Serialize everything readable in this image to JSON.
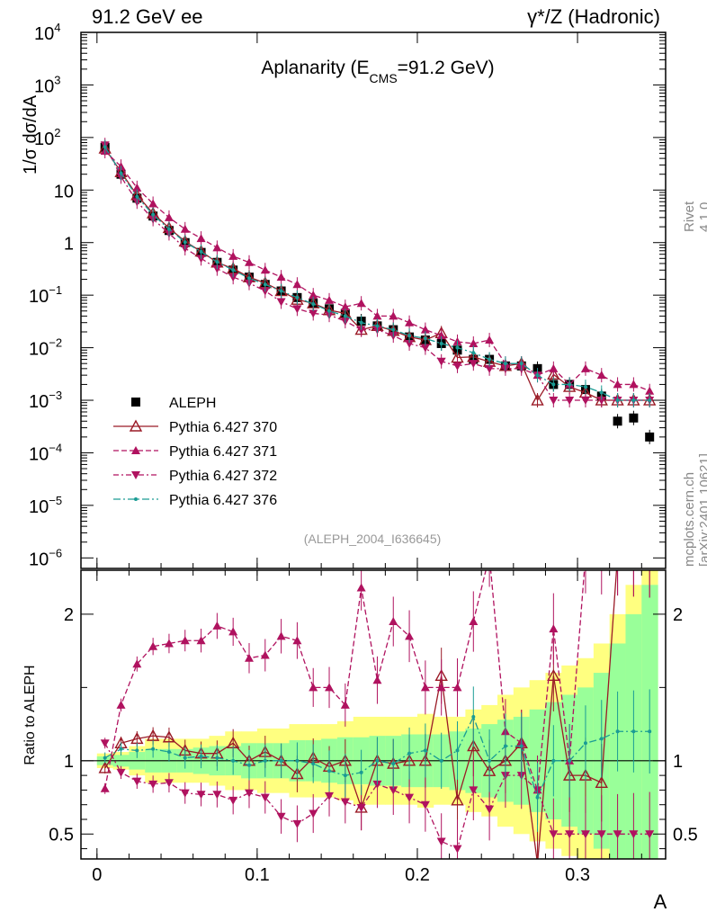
{
  "header": {
    "left": "91.2 GeV ee",
    "right": "γ*/Z (Hadronic)"
  },
  "side": {
    "rivet": "Rivet 4.1.0, ≥ 100k events",
    "mcplots": "mcplots.cern.ch [arXiv:2401.10621]"
  },
  "chart_data": {
    "type": "scatter",
    "title": "Aplanarity (E_CMS=91.2 GeV)",
    "title_parts": {
      "main": "Aplanarity (E",
      "sub": "CMS",
      "tail": "=91.2 GeV)"
    },
    "ylabel": "1/σ  dσ/dA",
    "xlabel": "A",
    "ratio_ylabel": "Ratio to ALEPH",
    "analysis_label": "(ALEPH_2004_I636645)",
    "xlim": [
      -0.01,
      0.355
    ],
    "ylim_log": [
      -6.2,
      4
    ],
    "ratio_ylim": [
      0.33,
      2.3
    ],
    "xticks": [
      {
        "v": 0,
        "label": "0"
      },
      {
        "v": 0.1,
        "label": "0.1"
      },
      {
        "v": 0.2,
        "label": "0.2"
      },
      {
        "v": 0.3,
        "label": "0.3"
      }
    ],
    "yticks": [
      {
        "exp": 4,
        "label": "10",
        "sup": "4"
      },
      {
        "exp": 3,
        "label": "10",
        "sup": "3"
      },
      {
        "exp": 2,
        "label": "10",
        "sup": "2"
      },
      {
        "exp": 1,
        "label": "10",
        "sup": ""
      },
      {
        "exp": 0,
        "label": "1",
        "sup": ""
      },
      {
        "exp": -1,
        "label": "10",
        "sup": "−1"
      },
      {
        "exp": -2,
        "label": "10",
        "sup": "−2"
      },
      {
        "exp": -3,
        "label": "10",
        "sup": "−3"
      },
      {
        "exp": -4,
        "label": "10",
        "sup": "−4"
      },
      {
        "exp": -5,
        "label": "10",
        "sup": "−5"
      },
      {
        "exp": -6,
        "label": "10",
        "sup": "−6"
      }
    ],
    "ratio_yticks": [
      {
        "v": 0.5,
        "label": "0.5"
      },
      {
        "v": 1,
        "label": "1"
      },
      {
        "v": 2,
        "label": "2"
      }
    ],
    "x": [
      0.005,
      0.015,
      0.025,
      0.035,
      0.045,
      0.055,
      0.065,
      0.075,
      0.085,
      0.095,
      0.105,
      0.115,
      0.125,
      0.135,
      0.145,
      0.155,
      0.165,
      0.175,
      0.185,
      0.195,
      0.205,
      0.215,
      0.225,
      0.235,
      0.245,
      0.255,
      0.265,
      0.275,
      0.285,
      0.295,
      0.305,
      0.315,
      0.325,
      0.335,
      0.345
    ],
    "legend": [
      {
        "name": "ALEPH",
        "color": "#000000",
        "marker": "square",
        "dash": ""
      },
      {
        "name": "Pythia 6.427 370",
        "color": "#9a1a26",
        "marker": "open-triangle",
        "dash": ""
      },
      {
        "name": "Pythia 6.427 371",
        "color": "#b0125f",
        "marker": "triangle",
        "dash": "6,3"
      },
      {
        "name": "Pythia 6.427 372",
        "color": "#b0125f",
        "marker": "down-triangle",
        "dash": "6,3,2,3"
      },
      {
        "name": "Pythia 6.427 376",
        "color": "#1a9c94",
        "marker": "dot",
        "dash": "8,3,2,3"
      }
    ],
    "series": [
      {
        "name": "ALEPH",
        "values": [
          65,
          20,
          7,
          3.2,
          1.7,
          1.0,
          0.65,
          0.42,
          0.3,
          0.22,
          0.16,
          0.12,
          0.09,
          0.07,
          0.055,
          0.045,
          0.032,
          0.026,
          0.022,
          0.016,
          0.014,
          0.012,
          0.009,
          0.006,
          0.006,
          0.0045,
          0.0045,
          0.004,
          0.002,
          0.002,
          0.0016,
          0.0012,
          0.0004,
          0.00046,
          0.0002
        ]
      },
      {
        "name": "Pythia 6.427 370",
        "values": [
          62,
          22,
          8,
          3.6,
          1.9,
          1.05,
          0.68,
          0.42,
          0.32,
          0.22,
          0.17,
          0.12,
          0.082,
          0.07,
          0.052,
          0.045,
          0.022,
          0.026,
          0.021,
          0.016,
          0.014,
          0.019,
          0.0065,
          0.0067,
          0.0054,
          0.0045,
          0.005,
          0.001,
          0.0031,
          0.0018,
          0.0014,
          0.001,
          0.001,
          0.001,
          0.001
        ]
      },
      {
        "name": "Pythia 6.427 371",
        "values": [
          55,
          28,
          11,
          5.5,
          3.0,
          1.8,
          1.2,
          0.8,
          0.55,
          0.42,
          0.3,
          0.22,
          0.16,
          0.1,
          0.08,
          0.06,
          0.07,
          0.04,
          0.04,
          0.03,
          0.022,
          0.017,
          0.013,
          0.012,
          0.014,
          0.005,
          0.005,
          0.003,
          0.004,
          0.002,
          0.004,
          0.003,
          0.002,
          0.002,
          0.0015
        ]
      },
      {
        "name": "Pythia 6.427 372",
        "values": [
          72,
          18,
          6,
          2.8,
          1.5,
          0.78,
          0.5,
          0.32,
          0.22,
          0.17,
          0.12,
          0.075,
          0.055,
          0.045,
          0.042,
          0.032,
          0.022,
          0.022,
          0.017,
          0.012,
          0.01,
          0.0055,
          0.0045,
          0.005,
          0.004,
          0.004,
          0.004,
          0.003,
          0.001,
          0.001,
          0.001,
          0.001,
          0.001,
          0.001,
          0.001
        ]
      },
      {
        "name": "Pythia 6.427 376",
        "values": [
          66,
          21,
          7.5,
          3.4,
          1.8,
          1.02,
          0.67,
          0.43,
          0.3,
          0.21,
          0.16,
          0.12,
          0.09,
          0.068,
          0.05,
          0.04,
          0.03,
          0.026,
          0.022,
          0.017,
          0.015,
          0.012,
          0.01,
          0.008,
          0.006,
          0.005,
          0.005,
          0.003,
          0.002,
          0.002,
          0.0018,
          0.0014,
          0.001,
          0.001,
          0.001
        ]
      }
    ],
    "ratio_series": [
      {
        "name": "Pythia 6.427 370",
        "values": [
          0.95,
          1.12,
          1.15,
          1.17,
          1.16,
          1.07,
          1.05,
          1.05,
          1.12,
          1.0,
          1.06,
          1.0,
          0.91,
          1.02,
          0.96,
          1.0,
          0.68,
          1.0,
          0.98,
          1.0,
          1.0,
          1.58,
          0.73,
          1.1,
          0.93,
          1.0,
          1.12,
          0.3,
          1.58,
          0.9,
          0.9,
          0.85,
          2.5,
          2.5,
          2.5
        ]
      },
      {
        "name": "Pythia 6.427 371",
        "values": [
          0.81,
          1.38,
          1.66,
          1.78,
          1.8,
          1.82,
          1.82,
          1.92,
          1.88,
          1.7,
          1.72,
          1.85,
          1.82,
          1.5,
          1.5,
          1.38,
          2.18,
          1.55,
          1.95,
          1.85,
          1.5,
          1.5,
          1.5,
          1.95,
          2.4,
          1.2,
          1.12,
          0.8,
          1.9,
          1.0,
          2.5,
          2.5,
          2.5,
          2.5,
          2.5
        ]
      },
      {
        "name": "Pythia 6.427 372",
        "values": [
          1.12,
          0.92,
          0.86,
          0.84,
          0.85,
          0.78,
          0.77,
          0.77,
          0.73,
          0.78,
          0.75,
          0.62,
          0.57,
          0.64,
          0.76,
          0.72,
          0.68,
          0.84,
          0.8,
          0.75,
          0.7,
          0.45,
          0.4,
          0.8,
          0.67,
          0.9,
          0.9,
          0.8,
          0.5,
          0.5,
          0.5,
          0.5,
          0.5,
          0.5,
          0.5
        ]
      },
      {
        "name": "Pythia 6.427 376",
        "values": [
          1.02,
          1.08,
          1.07,
          1.08,
          1.06,
          1.02,
          1.03,
          1.02,
          1.0,
          0.97,
          1.0,
          1.0,
          1.0,
          0.98,
          0.93,
          0.9,
          0.92,
          1.0,
          0.98,
          1.05,
          1.07,
          1.0,
          1.07,
          1.3,
          1.0,
          1.1,
          1.1,
          0.75,
          1.0,
          1.0,
          1.12,
          1.15,
          1.2,
          1.2,
          1.2
        ]
      }
    ],
    "bands": {
      "outer_color": "#ffff80",
      "inner_color": "#99ff99",
      "half_width_outer": [
        0.05,
        0.06,
        0.1,
        0.15,
        0.15,
        0.15,
        0.15,
        0.17,
        0.2,
        0.2,
        0.22,
        0.22,
        0.25,
        0.25,
        0.25,
        0.27,
        0.3,
        0.3,
        0.3,
        0.3,
        0.32,
        0.3,
        0.3,
        0.35,
        0.38,
        0.45,
        0.5,
        0.55,
        0.6,
        0.65,
        0.7,
        0.8,
        1.0,
        1.2,
        1.3
      ],
      "half_width_inner": [
        0.03,
        0.04,
        0.06,
        0.08,
        0.08,
        0.08,
        0.09,
        0.1,
        0.1,
        0.12,
        0.12,
        0.12,
        0.14,
        0.14,
        0.15,
        0.16,
        0.16,
        0.17,
        0.17,
        0.18,
        0.18,
        0.18,
        0.2,
        0.22,
        0.25,
        0.28,
        0.3,
        0.35,
        0.4,
        0.45,
        0.5,
        0.6,
        0.8,
        1.0,
        1.2
      ]
    }
  }
}
